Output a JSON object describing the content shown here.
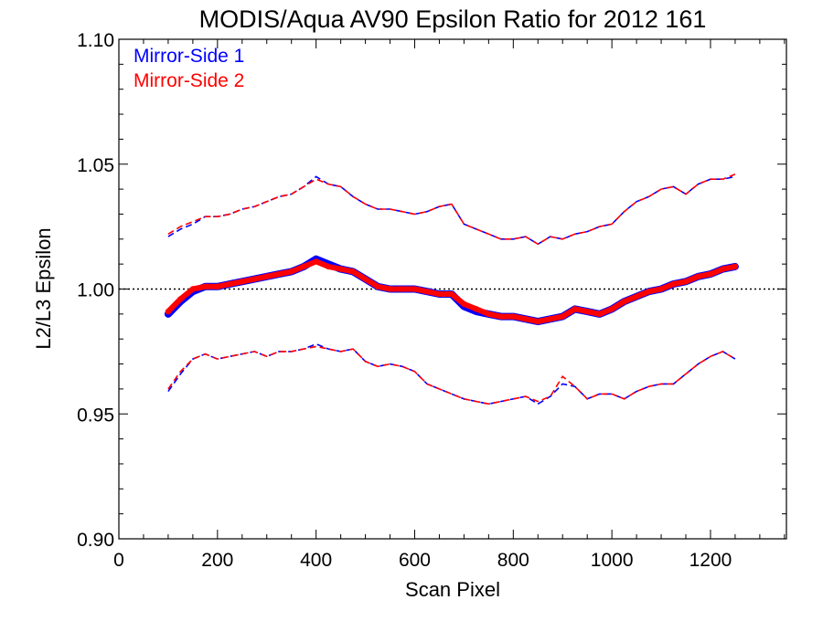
{
  "chart_data": {
    "type": "scatter",
    "title": "MODIS/Aqua AV90 Epsilon Ratio for 2012 161",
    "xlabel": "Scan Pixel",
    "ylabel": "L2/L3 Epsilon",
    "xlim": [
      0,
      1354
    ],
    "ylim": [
      0.9,
      1.1
    ],
    "x_ticks": [
      0,
      200,
      400,
      600,
      800,
      1000,
      1200
    ],
    "x_tick_labels": [
      "0",
      "200",
      "400",
      "600",
      "800",
      "1000",
      "1200"
    ],
    "y_ticks": [
      0.9,
      0.95,
      1.0,
      1.05,
      1.1
    ],
    "y_tick_labels": [
      "0.90",
      "0.95",
      "1.00",
      "1.05",
      "1.10"
    ],
    "reference_line": {
      "y": 1.0,
      "style": "dotted",
      "color": "#000000"
    },
    "legend_position": "top-left",
    "grid": false,
    "series": [
      {
        "name": "Mirror-Side 1",
        "color": "#0000ff",
        "x": [
          100,
          125,
          150,
          175,
          200,
          225,
          250,
          275,
          300,
          325,
          350,
          375,
          400,
          425,
          450,
          475,
          500,
          525,
          550,
          575,
          600,
          625,
          650,
          675,
          700,
          725,
          750,
          775,
          800,
          825,
          850,
          875,
          900,
          925,
          950,
          975,
          1000,
          1025,
          1050,
          1075,
          1100,
          1125,
          1150,
          1175,
          1200,
          1225,
          1250
        ],
        "mean": [
          0.99,
          0.995,
          0.999,
          1.001,
          1.001,
          1.002,
          1.003,
          1.004,
          1.005,
          1.006,
          1.007,
          1.009,
          1.012,
          1.01,
          1.008,
          1.007,
          1.004,
          1.001,
          1.0,
          1.0,
          1.0,
          0.999,
          0.998,
          0.998,
          0.993,
          0.991,
          0.99,
          0.989,
          0.989,
          0.988,
          0.987,
          0.988,
          0.989,
          0.992,
          0.991,
          0.99,
          0.992,
          0.995,
          0.997,
          0.999,
          1.0,
          1.002,
          1.003,
          1.005,
          1.006,
          1.008,
          1.009
        ],
        "upper": [
          1.021,
          1.024,
          1.026,
          1.029,
          1.029,
          1.03,
          1.032,
          1.033,
          1.035,
          1.037,
          1.038,
          1.041,
          1.045,
          1.042,
          1.041,
          1.037,
          1.034,
          1.032,
          1.032,
          1.031,
          1.03,
          1.031,
          1.033,
          1.034,
          1.026,
          1.024,
          1.022,
          1.02,
          1.02,
          1.021,
          1.018,
          1.021,
          1.02,
          1.022,
          1.023,
          1.025,
          1.026,
          1.031,
          1.035,
          1.037,
          1.04,
          1.041,
          1.038,
          1.042,
          1.044,
          1.044,
          1.045
        ],
        "lower": [
          0.959,
          0.966,
          0.972,
          0.974,
          0.972,
          0.973,
          0.974,
          0.975,
          0.973,
          0.975,
          0.975,
          0.976,
          0.978,
          0.976,
          0.975,
          0.976,
          0.971,
          0.969,
          0.97,
          0.969,
          0.967,
          0.962,
          0.96,
          0.958,
          0.956,
          0.955,
          0.954,
          0.955,
          0.956,
          0.957,
          0.954,
          0.957,
          0.962,
          0.961,
          0.956,
          0.958,
          0.958,
          0.956,
          0.959,
          0.961,
          0.962,
          0.962,
          0.966,
          0.97,
          0.973,
          0.975,
          0.972
        ]
      },
      {
        "name": "Mirror-Side 2",
        "color": "#ff0000",
        "x": [
          100,
          125,
          150,
          175,
          200,
          225,
          250,
          275,
          300,
          325,
          350,
          375,
          400,
          425,
          450,
          475,
          500,
          525,
          550,
          575,
          600,
          625,
          650,
          675,
          700,
          725,
          750,
          775,
          800,
          825,
          850,
          875,
          900,
          925,
          950,
          975,
          1000,
          1025,
          1050,
          1075,
          1100,
          1125,
          1150,
          1175,
          1200,
          1225,
          1250
        ],
        "mean": [
          0.991,
          0.996,
          1.0,
          1.001,
          1.001,
          1.002,
          1.003,
          1.004,
          1.005,
          1.006,
          1.007,
          1.009,
          1.011,
          1.009,
          1.008,
          1.007,
          1.004,
          1.001,
          1.0,
          1.0,
          1.0,
          0.999,
          0.998,
          0.998,
          0.994,
          0.992,
          0.99,
          0.989,
          0.989,
          0.988,
          0.987,
          0.988,
          0.989,
          0.992,
          0.991,
          0.99,
          0.992,
          0.995,
          0.997,
          0.999,
          1.0,
          1.002,
          1.003,
          1.005,
          1.006,
          1.008,
          1.009
        ],
        "upper": [
          1.022,
          1.025,
          1.027,
          1.029,
          1.029,
          1.03,
          1.032,
          1.033,
          1.035,
          1.037,
          1.038,
          1.041,
          1.044,
          1.042,
          1.041,
          1.037,
          1.034,
          1.032,
          1.032,
          1.031,
          1.03,
          1.031,
          1.033,
          1.034,
          1.026,
          1.024,
          1.022,
          1.02,
          1.02,
          1.021,
          1.018,
          1.021,
          1.02,
          1.022,
          1.023,
          1.025,
          1.026,
          1.031,
          1.035,
          1.037,
          1.04,
          1.041,
          1.038,
          1.042,
          1.044,
          1.044,
          1.046
        ],
        "lower": [
          0.96,
          0.967,
          0.972,
          0.974,
          0.972,
          0.973,
          0.974,
          0.975,
          0.973,
          0.975,
          0.975,
          0.976,
          0.977,
          0.976,
          0.975,
          0.976,
          0.971,
          0.969,
          0.97,
          0.969,
          0.967,
          0.962,
          0.96,
          0.958,
          0.956,
          0.955,
          0.954,
          0.955,
          0.956,
          0.957,
          0.955,
          0.957,
          0.965,
          0.961,
          0.956,
          0.958,
          0.958,
          0.956,
          0.959,
          0.961,
          0.962,
          0.962,
          0.966,
          0.97,
          0.973,
          0.975,
          0.972
        ]
      }
    ]
  }
}
